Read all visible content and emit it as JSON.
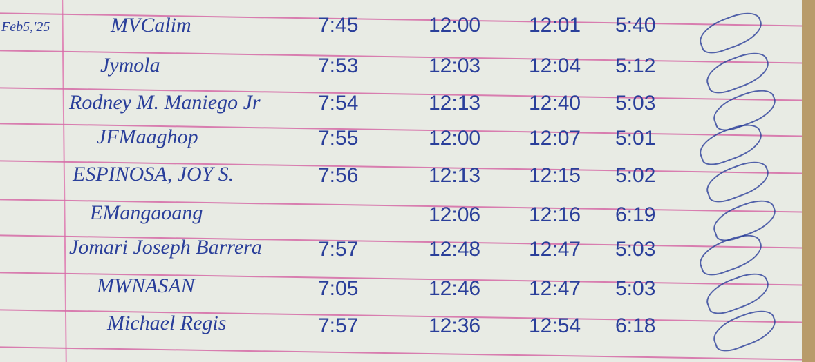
{
  "date": "Feb5,'25",
  "rows": [
    {
      "name": "MVCalim",
      "time_in_am": "7:45",
      "time_out_am": "12:00",
      "time_in_pm": "12:01",
      "time_out_pm": "5:40"
    },
    {
      "name": "Jymola",
      "time_in_am": "7:53",
      "time_out_am": "12:03",
      "time_in_pm": "12:04",
      "time_out_pm": "5:12"
    },
    {
      "name": "Rodney M. Maniego Jr",
      "time_in_am": "7:54",
      "time_out_am": "12:13",
      "time_in_pm": "12:40",
      "time_out_pm": "5:03"
    },
    {
      "name": "JFMaaghop",
      "time_in_am": "7:55",
      "time_out_am": "12:00",
      "time_in_pm": "12:07",
      "time_out_pm": "5:01"
    },
    {
      "name": "ESPINOSA, JOY S.",
      "time_in_am": "7:56",
      "time_out_am": "12:13",
      "time_in_pm": "12:15",
      "time_out_pm": "5:02"
    },
    {
      "name": "EMangaoang",
      "time_in_am": "",
      "time_out_am": "12:06",
      "time_in_pm": "12:16",
      "time_out_pm": "6:19"
    },
    {
      "name": "Jomari Joseph Barrera",
      "time_in_am": "7:57",
      "time_out_am": "12:48",
      "time_in_pm": "12:47",
      "time_out_pm": "5:03"
    },
    {
      "name": "MWNASAN",
      "time_in_am": "7:05",
      "time_out_am": "12:46",
      "time_in_pm": "12:47",
      "time_out_pm": "5:03"
    },
    {
      "name": "Michael Regis",
      "time_in_am": "7:57",
      "time_out_am": "12:36",
      "time_in_pm": "12:54",
      "time_out_pm": "6:18"
    }
  ],
  "colors": {
    "ink": "#2a3f9a",
    "rule": "#d56aa6",
    "paper": "#e8ebe4"
  }
}
